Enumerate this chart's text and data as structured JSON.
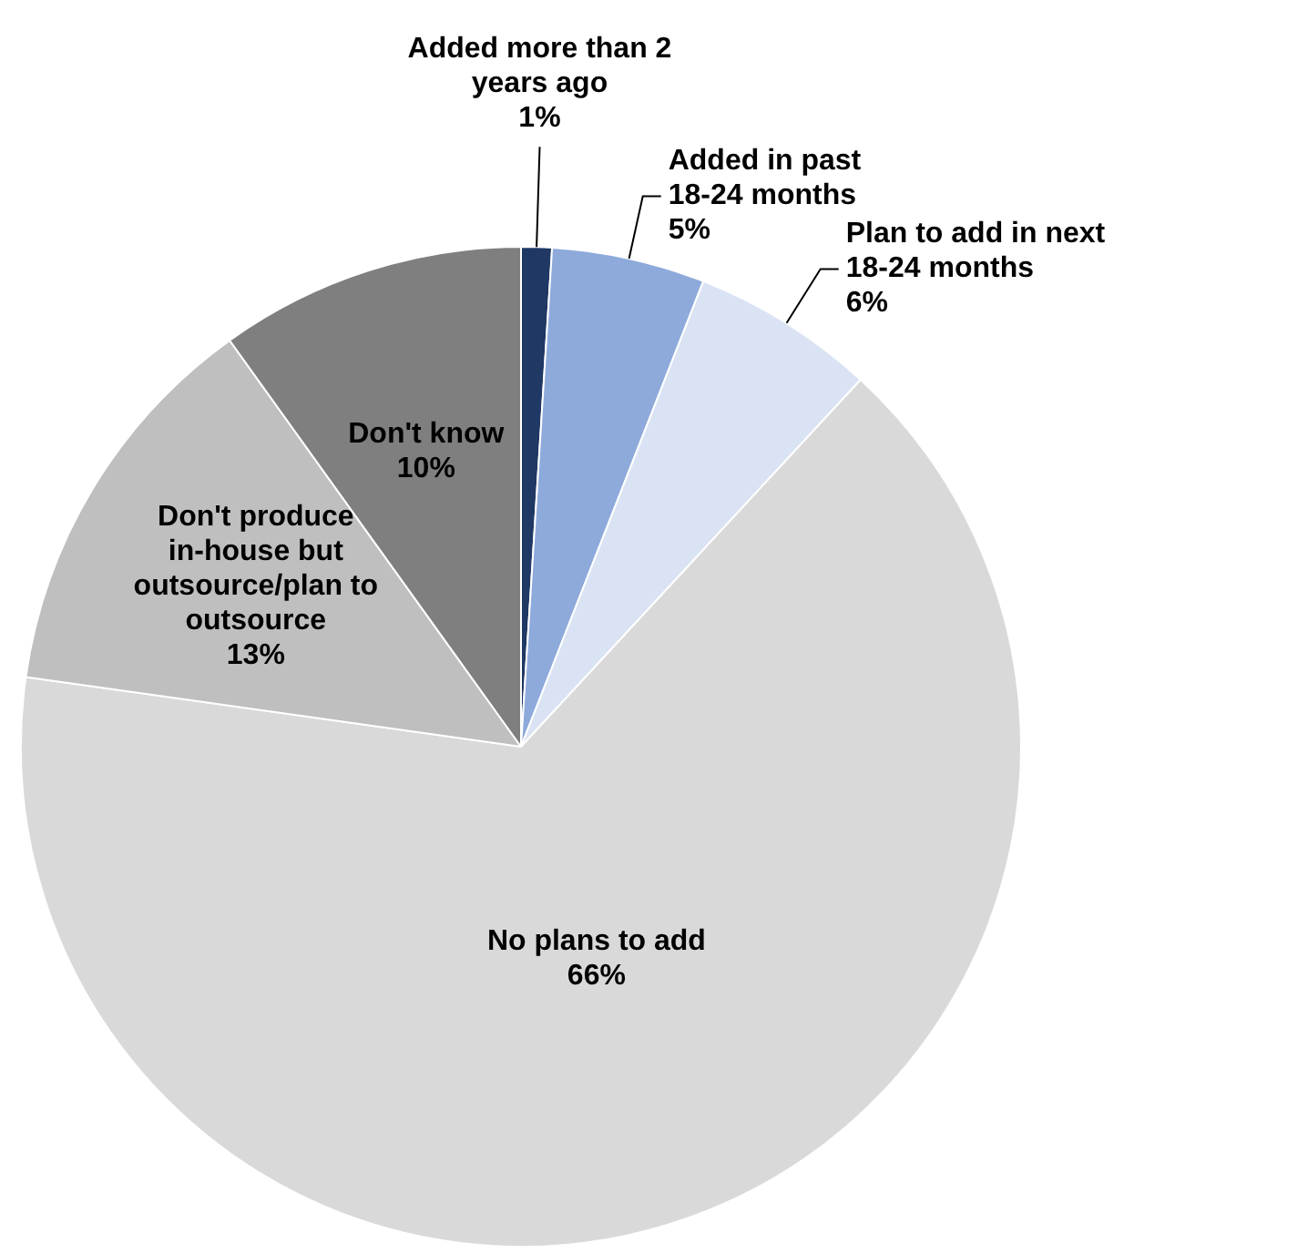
{
  "chart_data": {
    "type": "pie",
    "categories": [
      "Added more than 2 years ago",
      "Added in past 18-24 months",
      "Plan to add in next 18-24 months",
      "No plans to add",
      "Don't produce in-house but outsource/plan to outsource",
      "Don't know"
    ],
    "values": [
      1,
      5,
      6,
      66,
      13,
      10
    ],
    "value_labels": [
      "1%",
      "5%",
      "6%",
      "66%",
      "13%",
      "10%"
    ],
    "colors": [
      "#1f3864",
      "#8eaadb",
      "#dae3f3",
      "#d9d9d9",
      "#bfbfbf",
      "#7f7f7f"
    ],
    "legend": false
  }
}
